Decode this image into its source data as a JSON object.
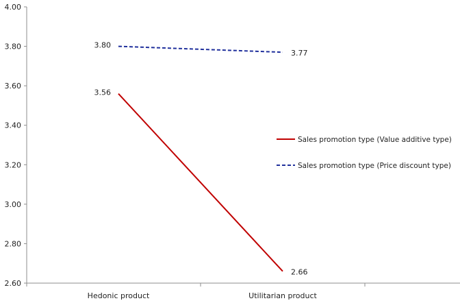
{
  "chart_data": {
    "type": "line",
    "categories": [
      "Hedonic product",
      "Utilitarian product"
    ],
    "series": [
      {
        "name": "Sales promotion type (Value additive type)",
        "values": [
          3.56,
          2.66
        ],
        "value_labels": [
          "3.56",
          "2.66"
        ],
        "color": "#c00000",
        "dash": "solid"
      },
      {
        "name": "Sales promotion type (Price discount type)",
        "values": [
          3.8,
          3.77
        ],
        "value_labels": [
          "3.80",
          "3.77"
        ],
        "color": "#1f2f9c",
        "dash": "dashed"
      }
    ],
    "y_ticks": [
      "2.60",
      "2.80",
      "3.00",
      "3.20",
      "3.40",
      "3.60",
      "3.80",
      "4.00"
    ],
    "ylim": [
      2.6,
      4.0
    ],
    "grid": false,
    "legend_position": "right"
  }
}
